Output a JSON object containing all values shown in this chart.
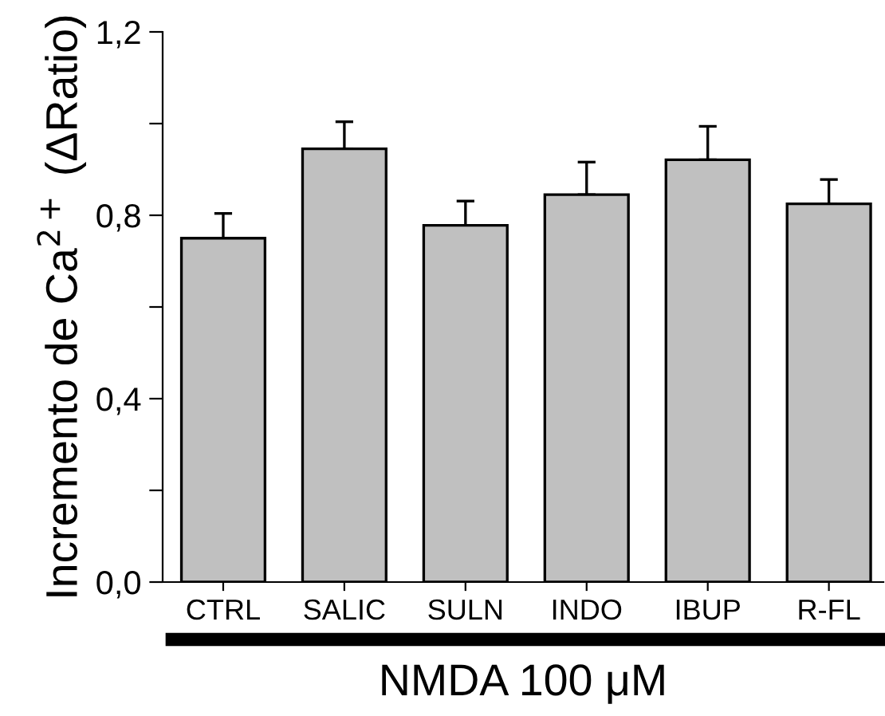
{
  "chart_data": {
    "type": "bar",
    "xlabel": "NMDA 100 μM",
    "ylabel": "Incremento de Ca$^{2+}$ (ΔRatio)",
    "categories": [
      "CTRL",
      "SALIC",
      "SULN",
      "INDO",
      "IBUP",
      "R-FL"
    ],
    "values": [
      0.75,
      0.945,
      0.778,
      0.845,
      0.921,
      0.825
    ],
    "errors": [
      [
        0.75,
        0.804
      ],
      [
        0.945,
        1.004
      ],
      [
        0.778,
        0.831
      ],
      [
        0.845,
        0.916
      ],
      [
        0.921,
        0.994
      ],
      [
        0.825,
        0.878
      ]
    ],
    "color": "#c0c0c0",
    "ylim": [
      0,
      1.2
    ],
    "yticks": [
      "0,0",
      {
        "value": 0.2,
        "label": null
      },
      {
        "value": 0.4,
        "label": "0,4"
      },
      {
        "value": 0.6,
        "label": null
      },
      {
        "value": 0.8,
        "label": "0,8"
      },
      {
        "value": 1.0,
        "label": null
      },
      {
        "value": 1.2,
        "label": "1,2"
      }
    ],
    "grid": false,
    "legend": false
  }
}
